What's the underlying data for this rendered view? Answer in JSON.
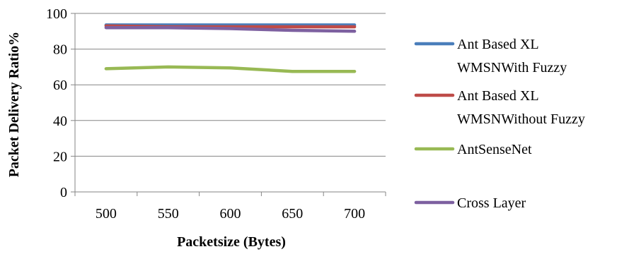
{
  "chart_data": {
    "type": "line",
    "title": "",
    "xlabel": "Packetsize (Bytes)",
    "ylabel": "Packet Delivery Ratio%",
    "categories": [
      "500",
      "550",
      "600",
      "650",
      "700"
    ],
    "ylim": [
      0,
      100
    ],
    "yticks": [
      0,
      20,
      40,
      60,
      80,
      100
    ],
    "grid": "horizontal",
    "legend_position": "right",
    "series": [
      {
        "name": "Ant Based XL WMSNWith Fuzzy",
        "legend_lines": [
          "Ant Based XL",
          "WMSNWith Fuzzy"
        ],
        "color": "#4a7ebb",
        "values": [
          93.5,
          93.5,
          93.5,
          93.5,
          93.5
        ]
      },
      {
        "name": "Ant Based XL WMSNWithout Fuzzy",
        "legend_lines": [
          "Ant Based XL",
          "WMSNWithout Fuzzy"
        ],
        "color": "#be4b48",
        "values": [
          93,
          92.5,
          92.5,
          92.5,
          92.5
        ]
      },
      {
        "name": "AntSenseNet",
        "legend_lines": [
          "AntSenseNet"
        ],
        "color": "#98b954",
        "values": [
          69,
          70,
          69.5,
          67.5,
          67.5
        ]
      },
      {
        "name": "Cross Layer",
        "legend_lines": [
          "Cross Layer"
        ],
        "color": "#7d60a0",
        "values": [
          92,
          92,
          91.5,
          90.5,
          90
        ]
      }
    ]
  }
}
